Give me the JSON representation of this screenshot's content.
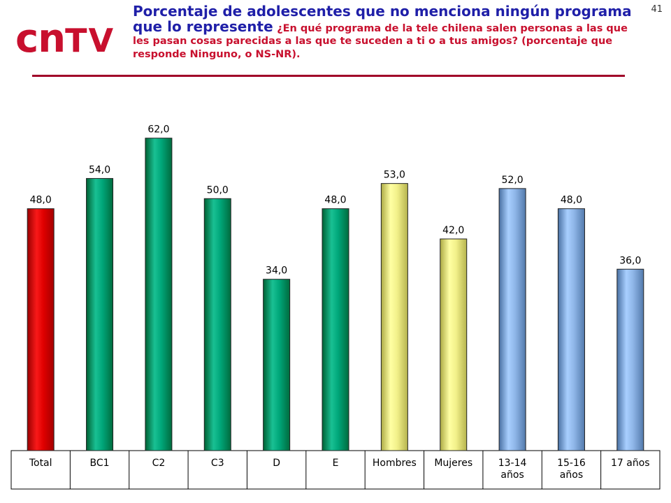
{
  "slide": {
    "number": "41"
  },
  "logo": {
    "part1": "cn",
    "part2": "TV"
  },
  "title": {
    "main": "Porcentaje de adolescentes que no menciona ningún programa que lo represente",
    "question": "¿En qué programa de la tele chilena salen personas a las que les pasan cosas parecidas a las que te suceden a ti o a tus amigos? (porcentaje que responde Ninguno, o NS-NR)."
  },
  "colors": {
    "red": "#e00000",
    "green": "#00a77a",
    "yellow": "#f2f08a",
    "blue": "#8fb6e8",
    "accent_rule": "#a00028",
    "title_blue": "#1f1fa8",
    "question_red": "#c8102e"
  },
  "chart_data": {
    "type": "bar",
    "categories": [
      "Total",
      "BC1",
      "C2",
      "C3",
      "D",
      "E",
      "Hombres",
      "Mujeres",
      "13-14 años",
      "15-16 años",
      "17 años"
    ],
    "category_lines": [
      [
        "Total"
      ],
      [
        "BC1"
      ],
      [
        "C2"
      ],
      [
        "C3"
      ],
      [
        "D"
      ],
      [
        "E"
      ],
      [
        "Hombres"
      ],
      [
        "Mujeres"
      ],
      [
        "13-14",
        "años"
      ],
      [
        "15-16",
        "años"
      ],
      [
        "17 años"
      ]
    ],
    "values": [
      48.0,
      54.0,
      62.0,
      50.0,
      34.0,
      48.0,
      53.0,
      42.0,
      52.0,
      48.0,
      36.0
    ],
    "value_labels": [
      "48,0",
      "54,0",
      "62,0",
      "50,0",
      "34,0",
      "48,0",
      "53,0",
      "42,0",
      "52,0",
      "48,0",
      "36,0"
    ],
    "bar_colors": [
      "red",
      "green",
      "green",
      "green",
      "green",
      "green",
      "yellow",
      "yellow",
      "blue",
      "blue",
      "blue"
    ],
    "ylim": [
      0,
      70
    ],
    "grid": false,
    "legend": "none"
  }
}
